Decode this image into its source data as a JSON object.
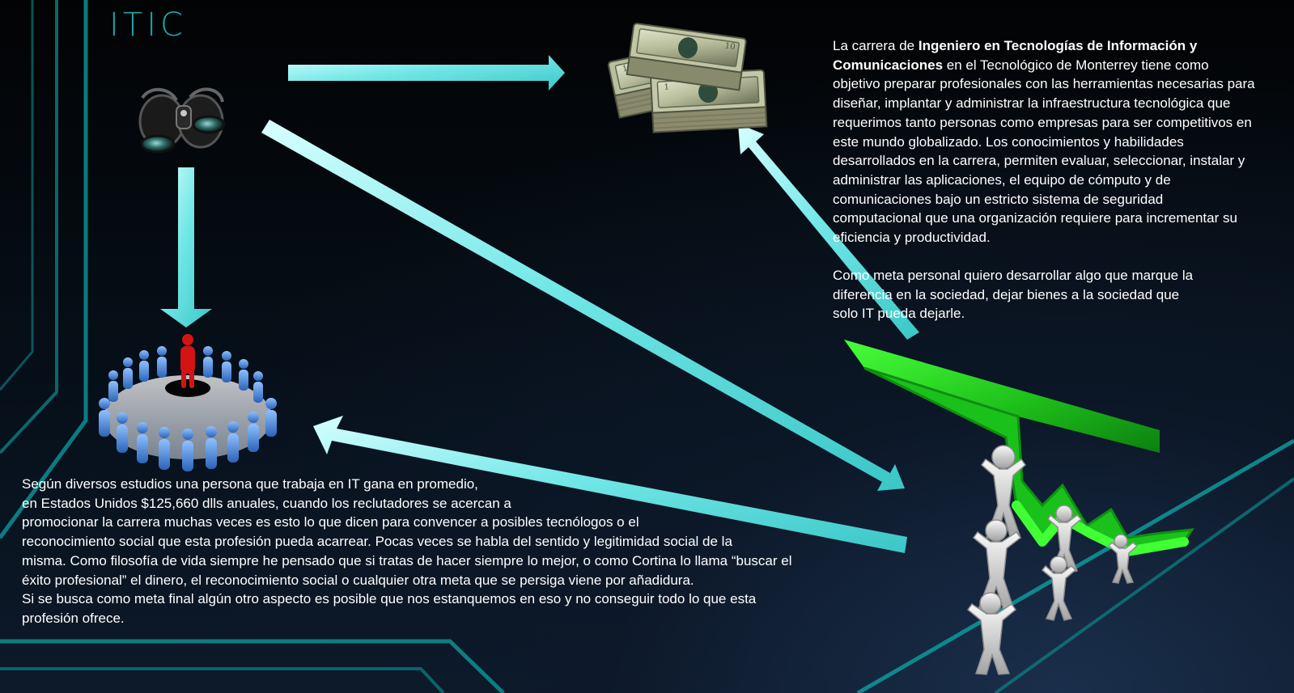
{
  "slide": {
    "title": "ITIC",
    "career_text": {
      "before_bold": "La carrera de ",
      "bold": "Ingeniero en Tecnologías de Información y\nComunicaciones",
      "after_bold": " en el Tecnológico de Monterrey tiene como\nobjetivo preparar profesionales con las herramientas necesarias para\ndiseñar, implantar y administrar la infraestructura tecnológica que\nrequerimos tanto personas como empresas para ser competitivos en\neste mundo globalizado. Los conocimientos y habilidades\ndesarrollados en la carrera, permiten evaluar, seleccionar, instalar y\nadministrar las aplicaciones, el equipo de cómputo y de\ncomunicaciones bajo un estricto sistema de seguridad\ncomputacional que una organización requiere para incrementar su\n   eficiencia y productividad."
    },
    "goal_text": "              Como meta personal quiero desarrollar algo que marque la\n                  diferencia en la sociedad, dejar bienes a la sociedad que\nsolo IT          pueda dejarle.",
    "study_text": "      Según diversos estudios una persona que trabaja en IT gana en promedio,\n     en  Estados Unidos $125,660 dlls anuales, cuando los reclutadores se acercan a\npromocionar la carrera muchas veces es esto lo que dicen para convencer a posibles tecnólogos o el\nreconocimiento social que esta profesión pueda acarrear. Pocas veces se habla del sentido y legitimidad social de la\nmisma. Como filosofía de vida siempre he pensado que si tratas de hacer siempre lo mejor, o como Cortina lo llama “buscar el\néxito profesional” el dinero, el reconocimiento social o cualquier otra meta que se persiga viene por añadidura.\n     Si se busca como meta final algún otro aspecto es posible que nos estanquemos en eso y no conseguir todo lo que esta\nprofesión ofrece."
  },
  "icons": {
    "vision": "binoculars-icon",
    "money": "money-stack-icon",
    "people": "crowd-leader-icon",
    "success": "team-lifting-chart-icon"
  },
  "colors": {
    "accent": "#1aa6a6",
    "arrow_light": "#d6fbfb",
    "arrow_main": "#48d6d6",
    "chart_green": "#22c51a",
    "leader_red": "#d31313",
    "crowd_blue": "#4f8dd8"
  }
}
